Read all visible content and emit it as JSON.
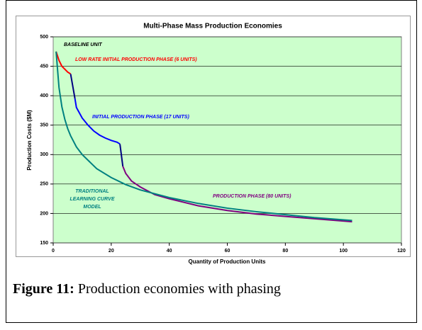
{
  "chart_data": {
    "type": "line",
    "title": "Multi-Phase Mass Production Economies",
    "xlabel": "Quantity of Production Units",
    "ylabel": "Production Costs ($M)",
    "xlim": [
      0,
      120
    ],
    "xticks": [
      0,
      20,
      40,
      60,
      80,
      100,
      120
    ],
    "ylim": [
      150,
      500
    ],
    "yticks": [
      150,
      200,
      250,
      300,
      350,
      400,
      450,
      500
    ],
    "grid": true,
    "background": "#ccffcc",
    "series": [
      {
        "color": "#ff0000",
        "x": [
          1,
          2,
          3,
          4,
          5,
          6
        ],
        "values": [
          475,
          460,
          450,
          445,
          440,
          437
        ]
      },
      {
        "color": "#000080",
        "x": [
          6,
          7.5
        ],
        "values": [
          437,
          395
        ]
      },
      {
        "color": "#0000ff",
        "x": [
          7.5,
          8,
          10,
          12,
          14,
          16,
          18,
          20,
          22,
          23
        ],
        "values": [
          395,
          380,
          362,
          350,
          340,
          333,
          328,
          324,
          321,
          318
        ]
      },
      {
        "color": "#000080",
        "x": [
          23,
          24
        ],
        "values": [
          318,
          280
        ]
      },
      {
        "color": "#800080",
        "x": [
          24,
          25,
          27,
          30,
          35,
          40,
          50,
          60,
          70,
          80,
          90,
          103
        ],
        "values": [
          280,
          268,
          255,
          245,
          232,
          225,
          213,
          205,
          199,
          195,
          191,
          186
        ]
      },
      {
        "color": "#008080",
        "x": [
          1,
          2,
          3,
          4,
          5,
          6,
          8,
          10,
          15,
          20,
          25,
          30,
          40,
          50,
          60,
          70,
          80,
          90,
          103
        ],
        "values": [
          475,
          414,
          381,
          360,
          344,
          332,
          313,
          300,
          276,
          261,
          249,
          240,
          227,
          217,
          209,
          203,
          198,
          193,
          188
        ]
      }
    ],
    "annotations": [
      {
        "text": "BASELINE UNIT",
        "color": "#000000"
      },
      {
        "text": "LOW RATE INITIAL PRODUCTION  PHASE (6 UNITS)",
        "color": "#ff0000"
      },
      {
        "text": "INITIAL PRODUCTION  PHASE (17 UNITS)",
        "color": "#0000ff"
      },
      {
        "text": "TRADITIONAL",
        "color": "#008080"
      },
      {
        "text": "LEARNING CURVE",
        "color": "#008080"
      },
      {
        "text": "MODEL",
        "color": "#008080"
      },
      {
        "text": "PRODUCTION PHASE (80 UNITS)",
        "color": "#800080"
      }
    ]
  },
  "caption": {
    "label": "Figure 11:",
    "text": "Production economies with phasing"
  }
}
